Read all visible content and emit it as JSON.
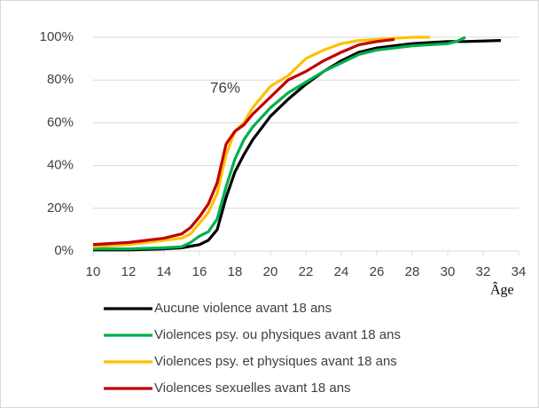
{
  "chart_data": {
    "type": "line",
    "x_label": "Âge",
    "annotation": "76%",
    "xlim": [
      10,
      34
    ],
    "xticks": [
      10,
      12,
      14,
      16,
      18,
      20,
      22,
      24,
      26,
      28,
      30,
      32,
      34
    ],
    "ylim": [
      0,
      100
    ],
    "yticks": [
      {
        "value": 0,
        "label": "0%"
      },
      {
        "value": 20,
        "label": "20%"
      },
      {
        "value": 40,
        "label": "40%"
      },
      {
        "value": 60,
        "label": "60%"
      },
      {
        "value": 80,
        "label": "80%"
      },
      {
        "value": 100,
        "label": "100%"
      }
    ],
    "grid": true,
    "legend": "bottom",
    "series": [
      {
        "name": "Aucune violence avant 18 ans",
        "color": "#000000",
        "x": [
          10,
          12,
          14,
          15,
          16,
          16.5,
          17,
          17.5,
          18,
          18.5,
          19,
          20,
          21,
          22,
          23,
          24,
          25,
          26,
          27,
          28,
          29,
          30,
          31,
          33
        ],
        "values": [
          0.5,
          0.5,
          1,
          1.5,
          3,
          5,
          10,
          25,
          37,
          45,
          52,
          63,
          71,
          78,
          84,
          89,
          93,
          95,
          96,
          97,
          97.5,
          98,
          98,
          98.5
        ]
      },
      {
        "name": "Violences psy. ou physiques avant 18 ans",
        "color": "#00b050",
        "x": [
          10,
          12,
          14,
          15,
          15.5,
          16,
          16.5,
          17,
          17.5,
          18,
          18.5,
          19,
          20,
          21,
          22,
          23,
          24,
          25,
          26,
          27,
          28,
          29,
          30,
          30.5,
          31
        ],
        "values": [
          1,
          1,
          1.5,
          2,
          4,
          7,
          9,
          15,
          30,
          43,
          52,
          58,
          67,
          74,
          79,
          84,
          88,
          92,
          94,
          95,
          96,
          96.5,
          97,
          98,
          100
        ]
      },
      {
        "name": "Violences psy. et physiques avant 18 ans",
        "color": "#ffc000",
        "x": [
          10,
          12,
          14,
          15,
          15.5,
          16,
          16.5,
          17,
          17.5,
          18,
          18.5,
          19,
          20,
          21,
          22,
          23,
          24,
          25,
          26,
          27,
          28,
          29
        ],
        "values": [
          2,
          3,
          5,
          6,
          8,
          13,
          18,
          27,
          45,
          56,
          60,
          67,
          77,
          82,
          90,
          94,
          97,
          98.5,
          99,
          99.5,
          100,
          100
        ]
      },
      {
        "name": "Violences sexuelles avant 18 ans",
        "color": "#c00000",
        "x": [
          10,
          12,
          14,
          15,
          15.5,
          16,
          16.5,
          17,
          17.5,
          18,
          18.5,
          19,
          20,
          21,
          22,
          23,
          24,
          25,
          26,
          27
        ],
        "values": [
          3,
          4,
          6,
          8,
          11,
          16,
          22,
          32,
          50,
          56,
          59,
          64,
          72,
          80,
          84,
          89,
          93,
          96.5,
          98,
          99
        ]
      }
    ]
  }
}
